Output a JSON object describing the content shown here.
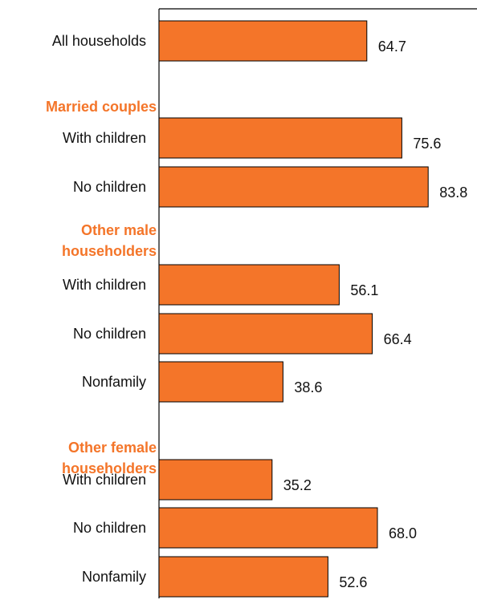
{
  "chart_data": {
    "type": "bar",
    "orientation": "horizontal",
    "title": "",
    "xlabel": "",
    "ylabel": "",
    "xlim": [
      0,
      100
    ],
    "grid": false,
    "legend": "none",
    "bar_color": "#F47529",
    "group_label_color": "#F47529",
    "groups": [
      {
        "label": "",
        "items": [
          {
            "label": "All households",
            "value": 64.7
          }
        ]
      },
      {
        "label": "Married couples",
        "items": [
          {
            "label": "With children",
            "value": 75.6
          },
          {
            "label": "No children",
            "value": 83.8
          }
        ]
      },
      {
        "label": "Other male\nhouseholders",
        "items": [
          {
            "label": "With children",
            "value": 56.1
          },
          {
            "label": "No children",
            "value": 66.4
          },
          {
            "label": "Nonfamily",
            "value": 38.6
          }
        ]
      },
      {
        "label": "Other female\nhouseholders",
        "items": [
          {
            "label": "With children",
            "value": 35.2
          },
          {
            "label": "No children",
            "value": 68.0
          },
          {
            "label": "Nonfamily",
            "value": 52.6
          }
        ]
      }
    ]
  }
}
